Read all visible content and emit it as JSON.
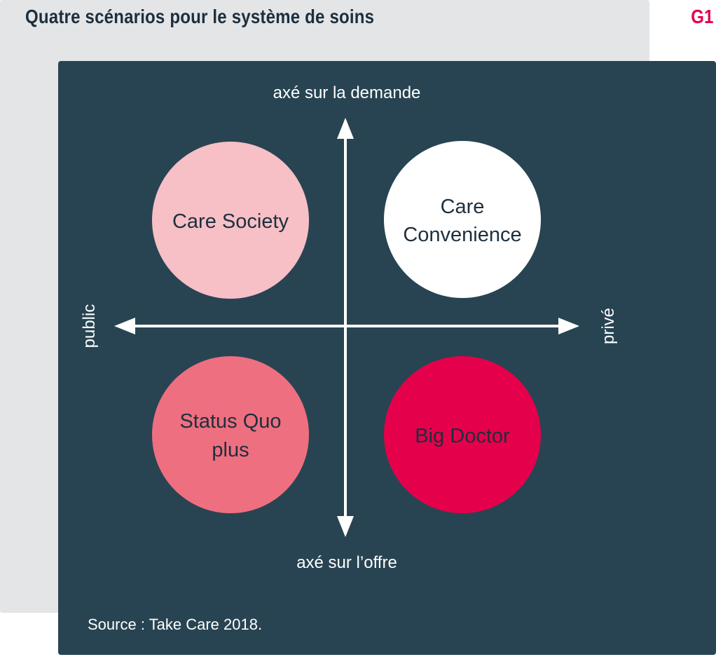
{
  "header": {
    "title": "Quatre scénarios pour le système de soins",
    "figure_label": "G1"
  },
  "axes": {
    "top_label": "axé sur la demande",
    "bottom_label": "axé sur l’offre",
    "left_label": "public",
    "right_label": "privé"
  },
  "quadrants": {
    "top_left": {
      "lines": [
        "Care Society"
      ],
      "fill": "#f7bfc6"
    },
    "top_right": {
      "lines": [
        "Care",
        "Convenience"
      ],
      "fill": "#ffffff"
    },
    "bottom_left": {
      "lines": [
        "Status Quo",
        "plus"
      ],
      "fill": "#ee6f80"
    },
    "bottom_right": {
      "lines": [
        "Big Doctor"
      ],
      "fill": "#e5004b"
    }
  },
  "source": "Source : Take Care 2018.",
  "colors": {
    "panel_background": "#284452",
    "frame_background": "#e4e5e7",
    "title": "#1d2f3d",
    "accent": "#e5004b",
    "axis": "#ffffff"
  }
}
